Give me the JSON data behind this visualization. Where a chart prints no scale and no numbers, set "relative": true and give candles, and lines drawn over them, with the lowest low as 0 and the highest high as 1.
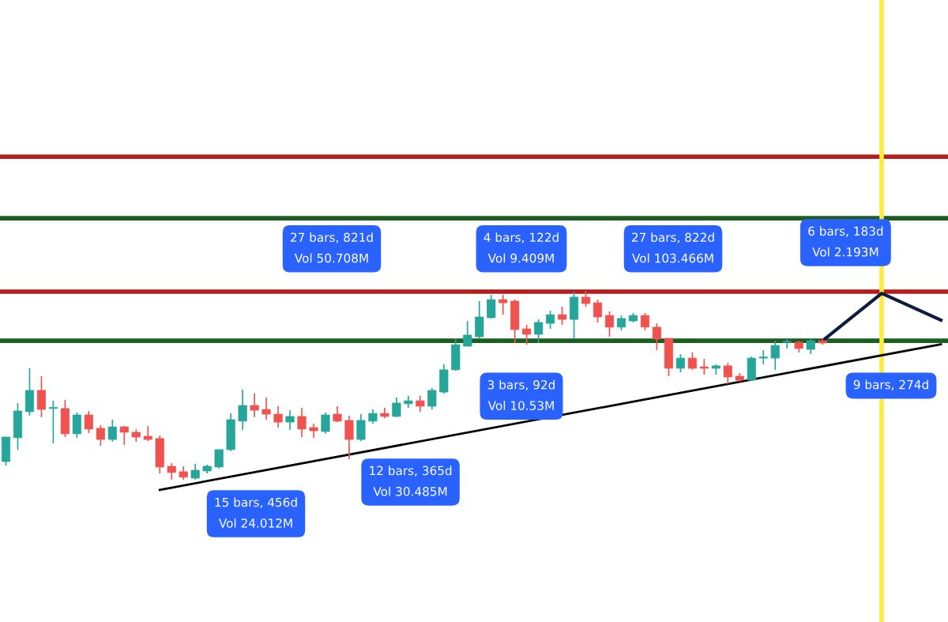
{
  "chart_data": {
    "type": "candlestick",
    "relative": true,
    "categories": [
      null,
      null,
      null,
      null,
      null,
      null,
      null,
      null,
      null,
      null,
      null,
      null,
      null,
      null,
      null,
      null,
      null,
      null,
      null,
      null,
      null,
      null,
      null,
      null,
      null,
      null,
      null,
      null,
      null,
      null,
      null,
      null,
      null,
      null,
      null,
      null,
      null,
      null,
      null,
      null,
      null,
      null,
      null,
      null,
      null,
      null,
      null,
      null,
      null,
      null,
      null,
      null,
      null,
      null,
      null,
      null,
      null,
      null,
      null,
      null,
      null,
      null,
      null,
      null,
      null,
      null,
      null,
      null,
      null,
      null,
      null,
      null,
      null,
      null,
      null,
      null,
      null,
      null,
      null,
      null
    ],
    "ohlc": [
      [
        0.096,
        0.226,
        0.075,
        0.226
      ],
      [
        0.222,
        0.406,
        0.159,
        0.364
      ],
      [
        0.36,
        0.59,
        0.339,
        0.473
      ],
      [
        0.473,
        0.548,
        0.331,
        0.372
      ],
      [
        0.377,
        0.418,
        0.192,
        0.377
      ],
      [
        0.377,
        0.423,
        0.226,
        0.243
      ],
      [
        0.243,
        0.356,
        0.222,
        0.343
      ],
      [
        0.343,
        0.364,
        0.247,
        0.268
      ],
      [
        0.272,
        0.289,
        0.18,
        0.213
      ],
      [
        0.213,
        0.318,
        0.201,
        0.28
      ],
      [
        0.28,
        0.285,
        0.184,
        0.251
      ],
      [
        0.251,
        0.268,
        0.201,
        0.226
      ],
      [
        0.23,
        0.285,
        0.205,
        0.213
      ],
      [
        0.218,
        0.234,
        0.033,
        0.067
      ],
      [
        0.071,
        0.088,
        0,
        0.038
      ],
      [
        0.042,
        0.071,
        0,
        0.013
      ],
      [
        0.008,
        0.084,
        0,
        0.05
      ],
      [
        0.046,
        0.079,
        0.033,
        0.071
      ],
      [
        0.067,
        0.159,
        0.059,
        0.159
      ],
      [
        0.159,
        0.351,
        0.151,
        0.318
      ],
      [
        0.31,
        0.477,
        0.264,
        0.393
      ],
      [
        0.393,
        0.456,
        0.331,
        0.368
      ],
      [
        0.372,
        0.435,
        0.318,
        0.347
      ],
      [
        0.347,
        0.389,
        0.276,
        0.305
      ],
      [
        0.305,
        0.368,
        0.264,
        0.335
      ],
      [
        0.335,
        0.381,
        0.226,
        0.268
      ],
      [
        0.276,
        0.297,
        0.222,
        0.259
      ],
      [
        0.255,
        0.356,
        0.243,
        0.343
      ],
      [
        0.347,
        0.389,
        0.305,
        0.31
      ],
      [
        0.314,
        0.339,
        0.109,
        0.213
      ],
      [
        0.213,
        0.347,
        0.205,
        0.314
      ],
      [
        0.31,
        0.372,
        0.297,
        0.351
      ],
      [
        0.351,
        0.381,
        0.326,
        0.335
      ],
      [
        0.335,
        0.435,
        0.331,
        0.406
      ],
      [
        0.402,
        0.444,
        0.381,
        0.418
      ],
      [
        0.418,
        0.444,
        0.36,
        0.389
      ],
      [
        0.389,
        0.485,
        0.372,
        0.473
      ],
      [
        0.464,
        0.611,
        0.456,
        0.582
      ],
      [
        0.582,
        0.745,
        0.577,
        0.715
      ],
      [
        0.707,
        0.841,
        0.707,
        0.766
      ],
      [
        0.757,
        0.946,
        0.749,
        0.862
      ],
      [
        0.858,
        0.979,
        0.854,
        0.954
      ],
      [
        0.954,
        0.979,
        0.874,
        0.937
      ],
      [
        0.946,
        0.954,
        0.724,
        0.795
      ],
      [
        0.799,
        0.82,
        0.715,
        0.77
      ],
      [
        0.77,
        0.849,
        0.724,
        0.833
      ],
      [
        0.828,
        0.895,
        0.799,
        0.874
      ],
      [
        0.874,
        0.916,
        0.82,
        0.849
      ],
      [
        0.849,
        0.996,
        0.745,
        0.967
      ],
      [
        0.967,
        1,
        0.916,
        0.933
      ],
      [
        0.937,
        0.954,
        0.833,
        0.862
      ],
      [
        0.87,
        0.891,
        0.757,
        0.808
      ],
      [
        0.808,
        0.87,
        0.791,
        0.854
      ],
      [
        0.841,
        0.883,
        0.833,
        0.87
      ],
      [
        0.87,
        0.883,
        0.791,
        0.808
      ],
      [
        0.808,
        0.828,
        0.686,
        0.745
      ],
      [
        0.749,
        0.749,
        0.548,
        0.59
      ],
      [
        0.59,
        0.665,
        0.569,
        0.644
      ],
      [
        0.644,
        0.674,
        0.582,
        0.59
      ],
      [
        0.598,
        0.64,
        0.556,
        0.59
      ],
      [
        0.59,
        0.611,
        0.556,
        0.603
      ],
      [
        0.603,
        0.619,
        0.506,
        0.544
      ],
      [
        0.548,
        0.565,
        0.519,
        0.527
      ],
      [
        0.527,
        0.653,
        0.523,
        0.644
      ],
      [
        0.644,
        0.686,
        0.611,
        0.644
      ],
      [
        0.644,
        0.736,
        0.582,
        0.711
      ],
      [
        0.728,
        0.745,
        0.695,
        0.728
      ],
      [
        0.728,
        0.736,
        0.674,
        0.695
      ],
      [
        0.69,
        0.745,
        0.665,
        0.736
      ],
      [
        0.736,
        0.749,
        0.715,
        0.724
      ],
      null,
      null,
      null,
      null,
      null,
      null,
      null,
      null,
      null,
      null
    ],
    "series": [
      {
        "type": "line",
        "color": "#000000",
        "values": [
          null,
          null,
          null,
          null,
          null,
          null,
          null,
          null,
          null,
          null,
          null,
          null,
          null,
          -0.054,
          null,
          null,
          null,
          null,
          null,
          null,
          null,
          null,
          null,
          null,
          null,
          null,
          null,
          null,
          null,
          null,
          null,
          null,
          null,
          null,
          null,
          null,
          null,
          null,
          null,
          null,
          null,
          null,
          null,
          null,
          null,
          null,
          null,
          null,
          null,
          null,
          null,
          null,
          null,
          null,
          null,
          null,
          null,
          null,
          null,
          null,
          null,
          null,
          null,
          null,
          null,
          null,
          null,
          null,
          null,
          null,
          null,
          null,
          null,
          null,
          null,
          null,
          null,
          null,
          null,
          0.717
        ]
      },
      {
        "type": "line",
        "color": "#0d1b3e",
        "values": [
          null,
          null,
          null,
          null,
          null,
          null,
          null,
          null,
          null,
          null,
          null,
          null,
          null,
          null,
          null,
          null,
          null,
          null,
          null,
          null,
          null,
          null,
          null,
          null,
          null,
          null,
          null,
          null,
          null,
          null,
          null,
          null,
          null,
          null,
          null,
          null,
          null,
          null,
          null,
          null,
          null,
          null,
          null,
          null,
          null,
          null,
          null,
          null,
          null,
          null,
          null,
          null,
          null,
          null,
          null,
          null,
          null,
          null,
          null,
          null,
          null,
          null,
          null,
          null,
          null,
          null,
          null,
          null,
          null,
          0.736,
          null,
          null,
          null,
          null,
          0.987,
          null,
          null,
          null,
          null,
          0.845
        ]
      }
    ],
    "ref_lines": [
      {
        "axis": "y",
        "value": 1.711,
        "color": "#b71c1c"
      },
      {
        "axis": "y",
        "value": 1.385,
        "color": "#1b5e20"
      },
      {
        "axis": "y",
        "value": 0.996,
        "color": "#b71c1c"
      },
      {
        "axis": "y",
        "value": 0.736,
        "color": "#1b5e20"
      }
    ],
    "annotations": [
      "27 bars, 821d\nVol 50.708M",
      "4 bars, 122d\nVol 9.409M",
      "27 bars, 822d\nVol 103.466M",
      "12 bars, 365d\nVol 30.485M",
      "15 bars, 456d\nVol 24.012M",
      "3 bars, 92d\nVol 10.53M",
      "6 bars, 183d\nVol 2.193M",
      "9 bars, 274d"
    ]
  }
}
